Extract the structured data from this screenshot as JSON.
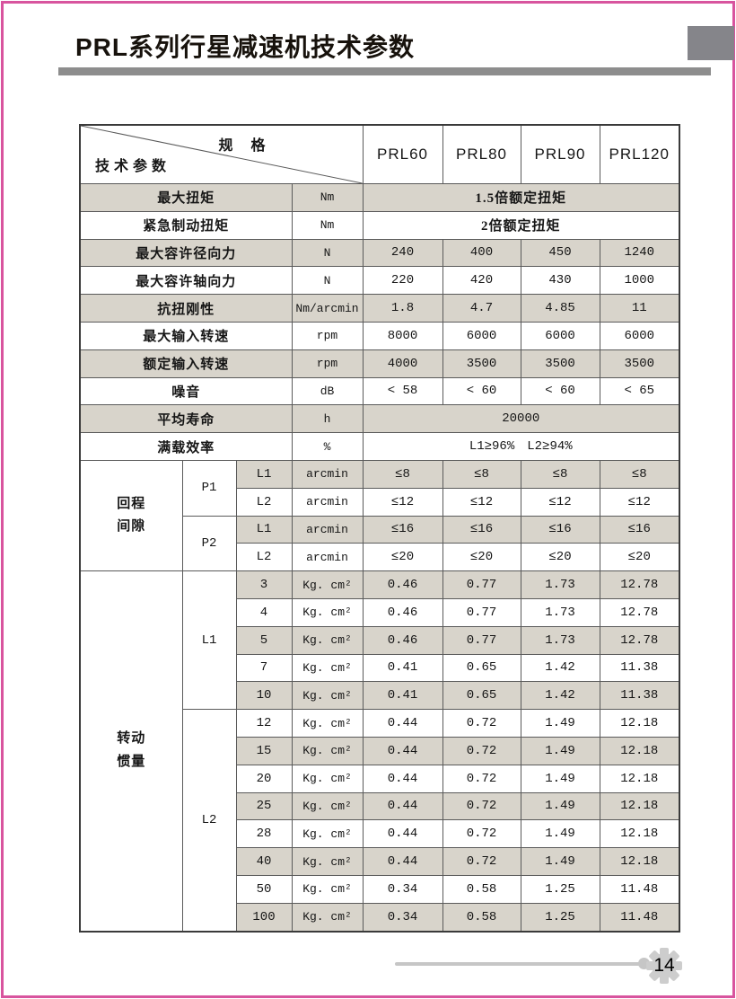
{
  "page": {
    "title": "PRL系列行星减速机技术参数",
    "page_number": "14"
  },
  "table": {
    "corner": {
      "top_right": "规 格",
      "bottom_left": "技术参数"
    },
    "models": [
      "PRL60",
      "PRL80",
      "PRL90",
      "PRL120"
    ],
    "simple_rows": [
      {
        "label": "最大扭矩",
        "unit": "Nm",
        "span": "1.5倍额定扭矩",
        "shade": true
      },
      {
        "label": "紧急制动扭矩",
        "unit": "Nm",
        "span": "2倍额定扭矩",
        "shade": false
      },
      {
        "label": "最大容许径向力",
        "unit": "N",
        "values": [
          "240",
          "400",
          "450",
          "1240"
        ],
        "shade": true
      },
      {
        "label": "最大容许轴向力",
        "unit": "N",
        "values": [
          "220",
          "420",
          "430",
          "1000"
        ],
        "shade": false
      },
      {
        "label": "抗扭刚性",
        "unit": "Nm/arcmin",
        "values": [
          "1.8",
          "4.7",
          "4.85",
          "11"
        ],
        "shade": true
      },
      {
        "label": "最大输入转速",
        "unit": "rpm",
        "values": [
          "8000",
          "6000",
          "6000",
          "6000"
        ],
        "shade": false
      },
      {
        "label": "额定输入转速",
        "unit": "rpm",
        "values": [
          "4000",
          "3500",
          "3500",
          "3500"
        ],
        "shade": true
      },
      {
        "label": "噪音",
        "unit": "dB",
        "values": [
          "< 58",
          "< 60",
          "< 60",
          "< 65"
        ],
        "shade": false
      },
      {
        "label": "平均寿命",
        "unit": "h",
        "span": "20000",
        "shade": true
      },
      {
        "label": "满载效率",
        "unit": "%",
        "span": "L1≥96% L2≥94%",
        "shade": false
      }
    ],
    "backlash": {
      "label": "回程间隙",
      "label_lines": [
        "回程",
        "间隙"
      ],
      "groups": [
        {
          "grade": "P1",
          "rows": [
            {
              "level": "L1",
              "unit": "arcmin",
              "values": [
                "≤8",
                "≤8",
                "≤8",
                "≤8"
              ],
              "shade": true
            },
            {
              "level": "L2",
              "unit": "arcmin",
              "values": [
                "≤12",
                "≤12",
                "≤12",
                "≤12"
              ],
              "shade": false
            }
          ]
        },
        {
          "grade": "P2",
          "rows": [
            {
              "level": "L1",
              "unit": "arcmin",
              "values": [
                "≤16",
                "≤16",
                "≤16",
                "≤16"
              ],
              "shade": true
            },
            {
              "level": "L2",
              "unit": "arcmin",
              "values": [
                "≤20",
                "≤20",
                "≤20",
                "≤20"
              ],
              "shade": false
            }
          ]
        }
      ]
    },
    "inertia": {
      "label": "转动惯量",
      "label_lines": [
        "转动",
        "惯量"
      ],
      "groups": [
        {
          "level": "L1",
          "rows": [
            {
              "ratio": "3",
              "unit": "Kg. cm²",
              "values": [
                "0.46",
                "0.77",
                "1.73",
                "12.78"
              ],
              "shade": true
            },
            {
              "ratio": "4",
              "unit": "Kg. cm²",
              "values": [
                "0.46",
                "0.77",
                "1.73",
                "12.78"
              ],
              "shade": false
            },
            {
              "ratio": "5",
              "unit": "Kg. cm²",
              "values": [
                "0.46",
                "0.77",
                "1.73",
                "12.78"
              ],
              "shade": true
            },
            {
              "ratio": "7",
              "unit": "Kg. cm²",
              "values": [
                "0.41",
                "0.65",
                "1.42",
                "11.38"
              ],
              "shade": false
            },
            {
              "ratio": "10",
              "unit": "Kg. cm²",
              "values": [
                "0.41",
                "0.65",
                "1.42",
                "11.38"
              ],
              "shade": true
            }
          ]
        },
        {
          "level": "L2",
          "rows": [
            {
              "ratio": "12",
              "unit": "Kg. cm²",
              "values": [
                "0.44",
                "0.72",
                "1.49",
                "12.18"
              ],
              "shade": false
            },
            {
              "ratio": "15",
              "unit": "Kg. cm²",
              "values": [
                "0.44",
                "0.72",
                "1.49",
                "12.18"
              ],
              "shade": true
            },
            {
              "ratio": "20",
              "unit": "Kg. cm²",
              "values": [
                "0.44",
                "0.72",
                "1.49",
                "12.18"
              ],
              "shade": false
            },
            {
              "ratio": "25",
              "unit": "Kg. cm²",
              "values": [
                "0.44",
                "0.72",
                "1.49",
                "12.18"
              ],
              "shade": true
            },
            {
              "ratio": "28",
              "unit": "Kg. cm²",
              "values": [
                "0.44",
                "0.72",
                "1.49",
                "12.18"
              ],
              "shade": false
            },
            {
              "ratio": "40",
              "unit": "Kg. cm²",
              "values": [
                "0.44",
                "0.72",
                "1.49",
                "12.18"
              ],
              "shade": true
            },
            {
              "ratio": "50",
              "unit": "Kg. cm²",
              "values": [
                "0.34",
                "0.58",
                "1.25",
                "11.48"
              ],
              "shade": false
            },
            {
              "ratio": "100",
              "unit": "Kg. cm²",
              "values": [
                "0.34",
                "0.58",
                "1.25",
                "11.48"
              ],
              "shade": true
            }
          ]
        }
      ]
    }
  },
  "colors": {
    "accent_pink": "#d8549e",
    "header_gray": "#8d8d8d",
    "corner_box_gray": "#85858a",
    "row_shade": "#d8d4cb",
    "table_border": "#5a5a5a",
    "footer_gray": "#c6c6c6",
    "gear_gray": "#cdcdcd"
  }
}
